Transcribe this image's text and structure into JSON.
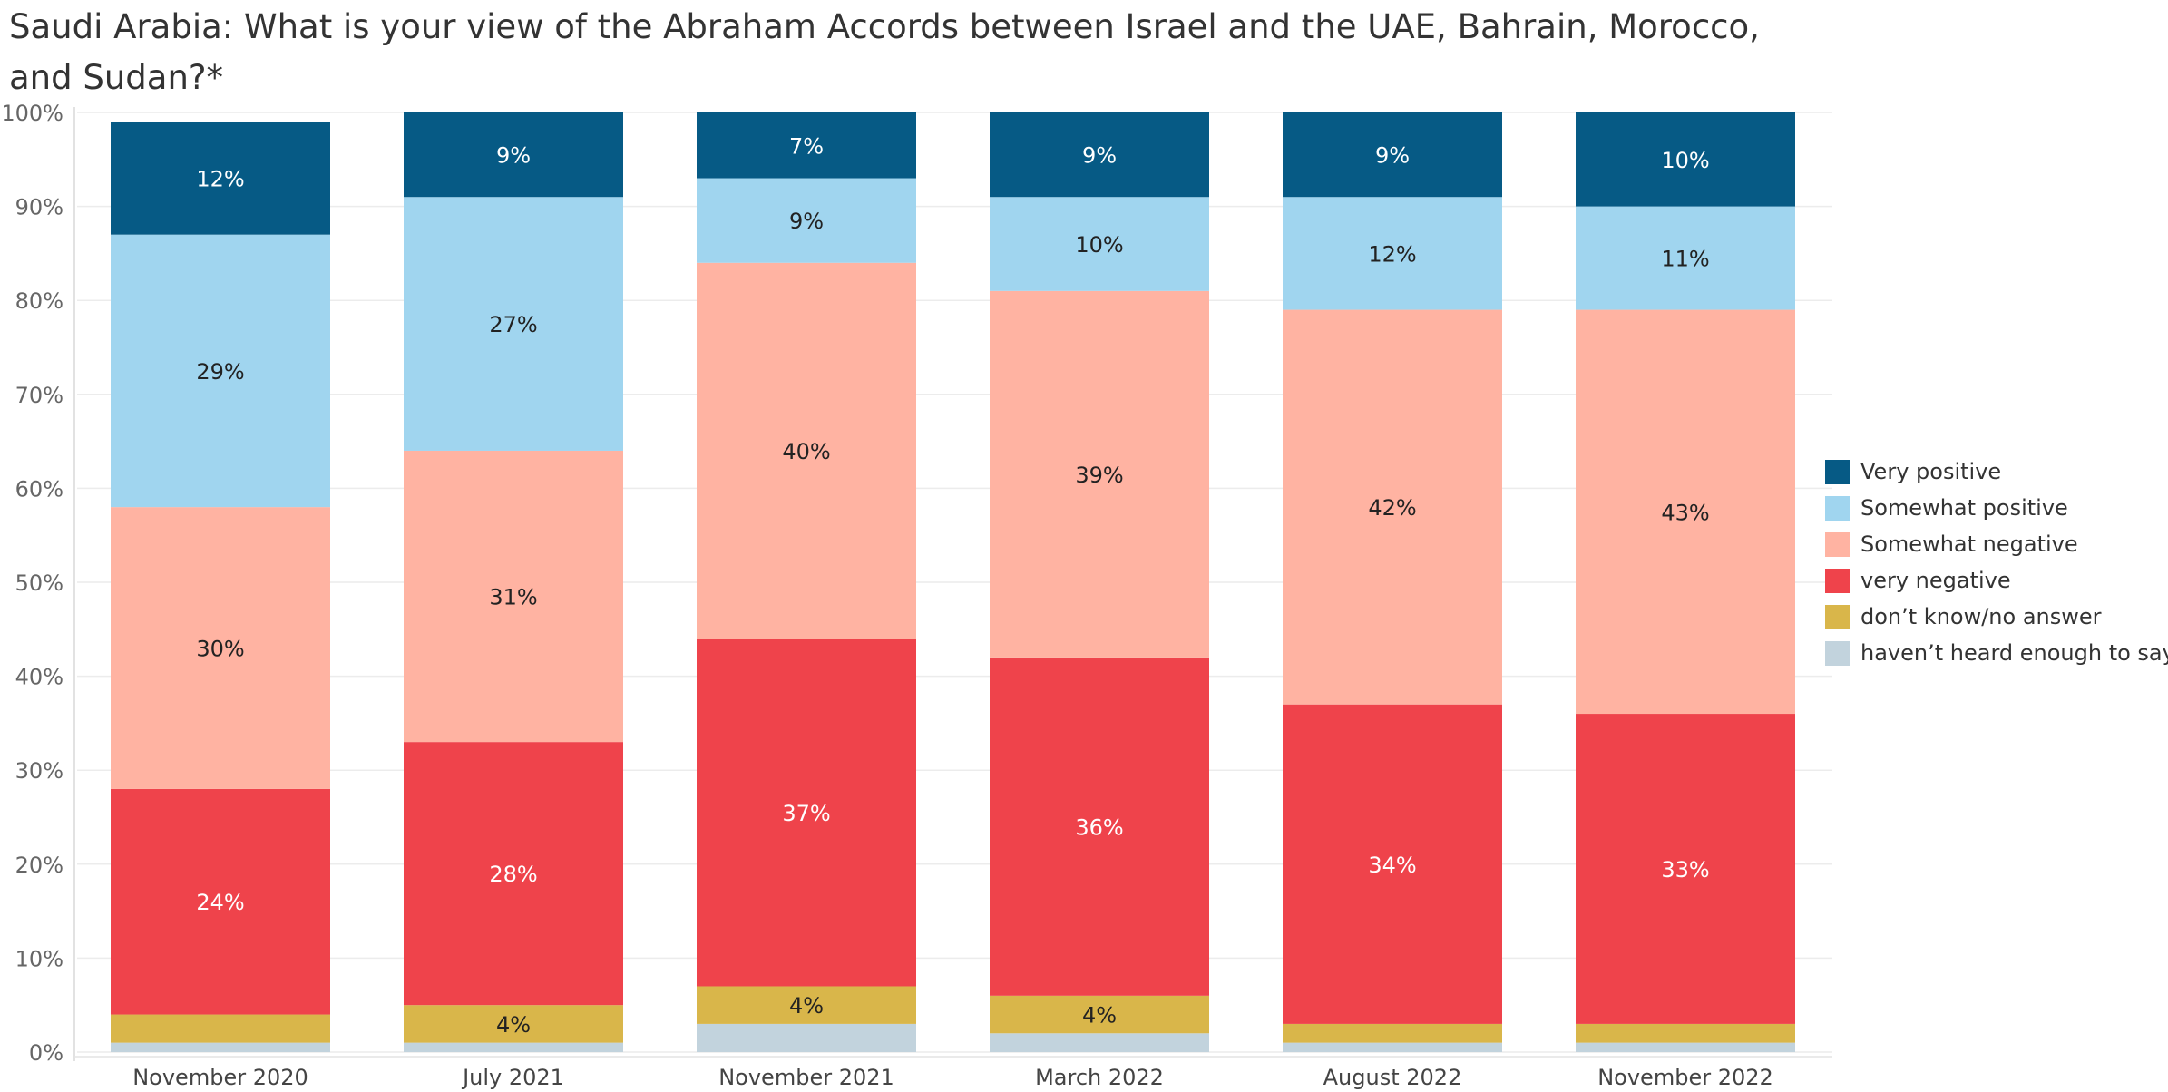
{
  "title": "Saudi Arabia: What is your view of the Abraham Accords between Israel and the UAE, Bahrain, Morocco, and Sudan?*",
  "chart_data": {
    "type": "bar",
    "stacked": true,
    "categories": [
      "November 2020",
      "July 2021",
      "November 2021",
      "March 2022",
      "August 2022",
      "November 2022"
    ],
    "series": [
      {
        "name": "haven’t heard enough to say",
        "color": "#c2d3dd",
        "values": [
          1,
          1,
          3,
          2,
          1,
          1
        ],
        "labels": [
          "",
          "",
          "",
          "",
          "",
          ""
        ]
      },
      {
        "name": "don’t know/no answer",
        "color": "#d9b64a",
        "values": [
          3,
          4,
          4,
          4,
          2,
          2
        ],
        "labels": [
          "",
          "4%",
          "4%",
          "4%",
          "",
          ""
        ]
      },
      {
        "name": "very negative",
        "color": "#ef434b",
        "values": [
          24,
          28,
          37,
          36,
          34,
          33
        ],
        "labels": [
          "24%",
          "28%",
          "37%",
          "36%",
          "34%",
          "33%"
        ]
      },
      {
        "name": "Somewhat negative",
        "color": "#ffb3a2",
        "values": [
          30,
          31,
          40,
          39,
          42,
          43
        ],
        "labels": [
          "30%",
          "31%",
          "40%",
          "39%",
          "42%",
          "43%"
        ]
      },
      {
        "name": "Somewhat positive",
        "color": "#a0d5ef",
        "values": [
          29,
          27,
          9,
          10,
          12,
          11
        ],
        "labels": [
          "29%",
          "27%",
          "9%",
          "10%",
          "12%",
          "11%"
        ]
      },
      {
        "name": "Very positive",
        "color": "#065a85",
        "values": [
          12,
          9,
          7,
          9,
          9,
          10
        ],
        "labels": [
          "12%",
          "9%",
          "7%",
          "9%",
          "9%",
          "10%"
        ]
      }
    ],
    "label_colors": {
      "very negative": "#ffffff",
      "Very positive": "#ffffff"
    },
    "y_ticks": [
      "0%",
      "10%",
      "20%",
      "30%",
      "40%",
      "50%",
      "60%",
      "70%",
      "80%",
      "90%",
      "100%"
    ],
    "ylim": [
      0,
      100
    ],
    "xlabel": "",
    "ylabel": "",
    "grid": true,
    "legend_position": "right",
    "legend": [
      "Very positive",
      "Somewhat positive",
      "Somewhat negative",
      "very negative",
      "don’t know/no answer",
      "haven’t heard enough to say"
    ]
  }
}
